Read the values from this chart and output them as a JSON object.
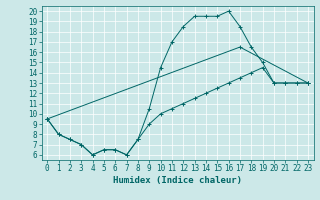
{
  "title": "",
  "xlabel": "Humidex (Indice chaleur)",
  "bg_color": "#cce8e8",
  "line_color": "#006666",
  "xlim": [
    -0.5,
    23.5
  ],
  "ylim": [
    5.5,
    20.5
  ],
  "yticks": [
    6,
    7,
    8,
    9,
    10,
    11,
    12,
    13,
    14,
    15,
    16,
    17,
    18,
    19,
    20
  ],
  "xticks": [
    0,
    1,
    2,
    3,
    4,
    5,
    6,
    7,
    8,
    9,
    10,
    11,
    12,
    13,
    14,
    15,
    16,
    17,
    18,
    19,
    20,
    21,
    22,
    23
  ],
  "line1_x": [
    0,
    1,
    2,
    3,
    4,
    5,
    6,
    7,
    8,
    9,
    10,
    11,
    12,
    13,
    14,
    15,
    16,
    17,
    18,
    19,
    20,
    21,
    22,
    23
  ],
  "line1_y": [
    9.5,
    8.0,
    7.5,
    7.0,
    6.0,
    6.5,
    6.5,
    6.0,
    7.5,
    10.5,
    14.5,
    17.0,
    18.5,
    19.5,
    19.5,
    19.5,
    20.0,
    18.5,
    16.5,
    15.0,
    13.0,
    13.0,
    13.0,
    13.0
  ],
  "line2_x": [
    0,
    1,
    2,
    3,
    4,
    5,
    6,
    7,
    8,
    9,
    10,
    11,
    12,
    13,
    14,
    15,
    16,
    17,
    18,
    19,
    20,
    21,
    22,
    23
  ],
  "line2_y": [
    9.5,
    8.0,
    7.5,
    7.0,
    6.0,
    6.5,
    6.5,
    6.0,
    7.5,
    9.0,
    10.0,
    10.5,
    11.0,
    11.5,
    12.0,
    12.5,
    13.0,
    13.5,
    14.0,
    14.5,
    13.0,
    13.0,
    13.0,
    13.0
  ],
  "line3_x": [
    0,
    17,
    23
  ],
  "line3_y": [
    9.5,
    16.5,
    13.0
  ],
  "tick_fontsize": 5.5,
  "xlabel_fontsize": 6.5,
  "grid_color": "#ffffff",
  "linewidth": 0.7,
  "markersize": 2.5
}
